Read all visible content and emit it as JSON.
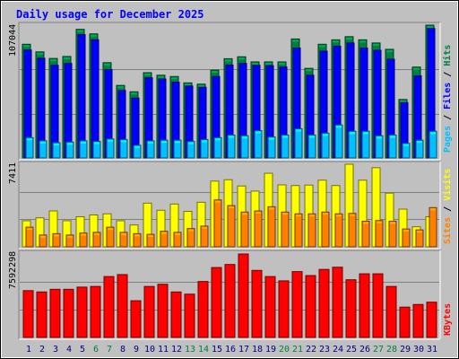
{
  "chart_data": [
    {
      "type": "bar",
      "title": "Daily usage for December 2025",
      "panel": "hits-files-pages",
      "y_max_label": "107044",
      "legend": [
        {
          "label": "Pages",
          "color": "#00c0ff"
        },
        {
          "label": "Files",
          "color": "#0000ff"
        },
        {
          "label": "Hits",
          "color": "#008040"
        }
      ],
      "ylim": [
        0,
        107044
      ],
      "categories": [
        "1",
        "2",
        "3",
        "4",
        "5",
        "6",
        "7",
        "8",
        "9",
        "10",
        "11",
        "12",
        "13",
        "14",
        "15",
        "16",
        "17",
        "18",
        "19",
        "20",
        "21",
        "22",
        "23",
        "24",
        "25",
        "26",
        "27",
        "28",
        "29",
        "30",
        "31"
      ],
      "series": [
        {
          "name": "Hits",
          "values": [
            91640,
            85500,
            80180,
            81800,
            103660,
            100000,
            76800,
            58460,
            53340,
            68720,
            66680,
            65640,
            60520,
            59500,
            70760,
            80000,
            81560,
            77420,
            77420,
            77420,
            95900,
            72220,
            91640,
            95220,
            97760,
            95220,
            92660,
            87540,
            47140,
            73260,
            107044
          ]
        },
        {
          "name": "Files",
          "values": [
            87000,
            80300,
            74660,
            76200,
            99380,
            95220,
            71180,
            54380,
            48260,
            64640,
            63620,
            61060,
            57980,
            56940,
            65640,
            74900,
            76200,
            74660,
            74380,
            73320,
            88580,
            66680,
            86020,
            90100,
            92660,
            88580,
            86760,
            79580,
            44580,
            66160,
            104320
          ]
        },
        {
          "name": "Pages",
          "values": [
            16400,
            13840,
            12320,
            12800,
            13840,
            13340,
            15360,
            14860,
            10260,
            13840,
            14340,
            14340,
            13320,
            14860,
            16400,
            18440,
            17920,
            22020,
            16920,
            18440,
            23560,
            18440,
            19960,
            26620,
            21500,
            21500,
            17920,
            18440,
            11780,
            14340,
            21500
          ]
        }
      ]
    },
    {
      "type": "bar",
      "panel": "visits-sites",
      "y_max_label": "7411",
      "legend": [
        {
          "label": "Sites",
          "color": "#ff8000"
        },
        {
          "label": "Visits",
          "color": "#ffff00"
        }
      ],
      "ylim": [
        0,
        7411
      ],
      "categories": [
        "1",
        "2",
        "3",
        "4",
        "5",
        "6",
        "7",
        "8",
        "9",
        "10",
        "11",
        "12",
        "13",
        "14",
        "15",
        "16",
        "17",
        "18",
        "19",
        "20",
        "21",
        "22",
        "23",
        "24",
        "25",
        "26",
        "27",
        "28",
        "29",
        "30",
        "31"
      ],
      "series": [
        {
          "name": "Visits",
          "values": [
            2340,
            2600,
            3220,
            2340,
            2700,
            2860,
            2960,
            2340,
            1960,
            3920,
            3280,
            3840,
            3180,
            4000,
            5900,
            6020,
            5460,
            5000,
            6600,
            5560,
            5500,
            5540,
            5980,
            5500,
            7411,
            5980,
            7100,
            4820,
            3380,
            1800,
            2700
          ]
        },
        {
          "name": "Sites",
          "values": [
            1760,
            1060,
            1180,
            1060,
            1240,
            1300,
            1760,
            1300,
            1180,
            1120,
            1400,
            1300,
            1640,
            1860,
            4210,
            3700,
            3120,
            3220,
            3600,
            3120,
            2960,
            2960,
            3120,
            2960,
            3000,
            2300,
            2360,
            2300,
            1600,
            1520,
            3520
          ]
        }
      ]
    },
    {
      "type": "bar",
      "panel": "kbytes",
      "y_max_label": "7592298",
      "legend": [
        {
          "label": "KBytes",
          "color": "#ff0000"
        }
      ],
      "ylim": [
        0,
        7592298
      ],
      "categories": [
        "1",
        "2",
        "3",
        "4",
        "5",
        "6",
        "7",
        "8",
        "9",
        "10",
        "11",
        "12",
        "13",
        "14",
        "15",
        "16",
        "17",
        "18",
        "19",
        "20",
        "21",
        "22",
        "23",
        "24",
        "25",
        "26",
        "27",
        "28",
        "29",
        "30",
        "31"
      ],
      "series": [
        {
          "name": "KBytes",
          "values": [
            4260000,
            4140000,
            4380000,
            4380000,
            4580000,
            4640000,
            5540000,
            5720000,
            3340000,
            4640000,
            4840000,
            4140000,
            3940000,
            5090000,
            6360000,
            6640000,
            7592298,
            6100000,
            5540000,
            5150000,
            5990000,
            5630000,
            6190000,
            6390000,
            5250000,
            5790000,
            5790000,
            4640000,
            2760000,
            3000000,
            3210000
          ]
        }
      ]
    }
  ],
  "x_axis": {
    "labels": [
      "1",
      "2",
      "3",
      "4",
      "5",
      "6",
      "7",
      "8",
      "9",
      "10",
      "11",
      "12",
      "13",
      "14",
      "15",
      "16",
      "17",
      "18",
      "19",
      "20",
      "21",
      "22",
      "23",
      "24",
      "25",
      "26",
      "27",
      "28",
      "29",
      "30",
      "31"
    ],
    "weekend_days": [
      "6",
      "7",
      "13",
      "14",
      "20",
      "21",
      "27",
      "28"
    ],
    "weekday_color": "#000080",
    "weekend_color": "#008040"
  },
  "colors": {
    "background": "#c0c0c0",
    "title": "#0000ff",
    "hits": "#008040",
    "files": "#0000ff",
    "pages": "#00c0ff",
    "visits": "#ffff00",
    "sites": "#ff8000",
    "kbytes": "#ff0000",
    "separator": "#808080"
  }
}
